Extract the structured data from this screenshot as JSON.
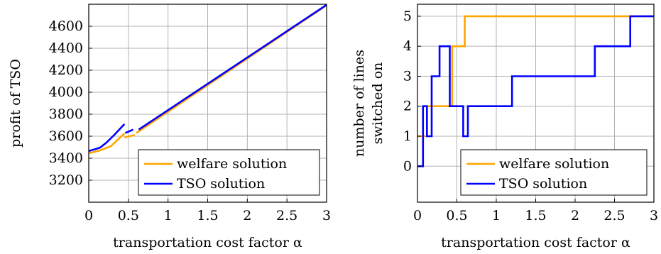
{
  "colors": {
    "welfare": "#ffa500",
    "tso": "#0000ff",
    "grid": "#b3b3b3"
  },
  "chart_data": [
    {
      "type": "line",
      "xlabel": "transportation cost factor α",
      "ylabel": "profit of TSO",
      "xlim": [
        0,
        3
      ],
      "ylim": [
        3000,
        4800
      ],
      "xticks": [
        {
          "v": 0,
          "label": "0"
        },
        {
          "v": 0.5,
          "label": "0.5"
        },
        {
          "v": 1,
          "label": "1"
        },
        {
          "v": 1.5,
          "label": "1.5"
        },
        {
          "v": 2,
          "label": "2"
        },
        {
          "v": 2.5,
          "label": "2.5"
        },
        {
          "v": 3,
          "label": "3"
        }
      ],
      "yticks": [
        {
          "v": 3200,
          "label": "3200"
        },
        {
          "v": 3400,
          "label": "3400"
        },
        {
          "v": 3600,
          "label": "3600"
        },
        {
          "v": 3800,
          "label": "3800"
        },
        {
          "v": 4000,
          "label": "4000"
        },
        {
          "v": 4200,
          "label": "4200"
        },
        {
          "v": 4400,
          "label": "4400"
        },
        {
          "v": 4600,
          "label": "4600"
        }
      ],
      "grid": true,
      "legend": "bottom-right",
      "series": [
        {
          "name": "welfare solution",
          "color_key": "welfare",
          "segments": [
            [
              [
                0,
                3445
              ],
              [
                0.14,
                3470
              ],
              [
                0.28,
                3510
              ],
              [
                0.45,
                3625
              ]
            ],
            [
              [
                0.45,
                3590
              ],
              [
                0.58,
                3610
              ]
            ],
            [
              [
                0.6,
                3630
              ],
              [
                3,
                4790
              ]
            ]
          ]
        },
        {
          "name": "TSO solution",
          "color_key": "tso",
          "segments": [
            [
              [
                0,
                3465
              ],
              [
                0.14,
                3495
              ],
              [
                0.22,
                3540
              ],
              [
                0.32,
                3610
              ],
              [
                0.45,
                3710
              ]
            ],
            [
              [
                0.46,
                3630
              ],
              [
                0.56,
                3660
              ]
            ],
            [
              [
                0.63,
                3660
              ],
              [
                3,
                4795
              ]
            ]
          ]
        }
      ]
    },
    {
      "type": "line",
      "xlabel": "transportation cost factor α",
      "ylabel": [
        "number of lines",
        "switched on"
      ],
      "xlim": [
        0,
        3
      ],
      "ylim": [
        -1.2,
        5.4
      ],
      "xticks": [
        {
          "v": 0,
          "label": "0"
        },
        {
          "v": 0.5,
          "label": "0.5"
        },
        {
          "v": 1,
          "label": "1"
        },
        {
          "v": 1.5,
          "label": "1.5"
        },
        {
          "v": 2,
          "label": "2"
        },
        {
          "v": 2.5,
          "label": "2.5"
        },
        {
          "v": 3,
          "label": "3"
        }
      ],
      "yticks": [
        {
          "v": 0,
          "label": "0"
        },
        {
          "v": 1,
          "label": "1"
        },
        {
          "v": 2,
          "label": "2"
        },
        {
          "v": 3,
          "label": "3"
        },
        {
          "v": 4,
          "label": "4"
        },
        {
          "v": 5,
          "label": "5"
        }
      ],
      "grid": true,
      "legend": "bottom-right",
      "series": [
        {
          "name": "welfare solution",
          "color_key": "welfare",
          "segments": [
            [
              [
                0,
                1
              ],
              [
                0.12,
                1
              ],
              [
                0.12,
                2
              ],
              [
                0.44,
                2
              ],
              [
                0.44,
                4
              ],
              [
                0.6,
                4
              ],
              [
                0.6,
                5
              ],
              [
                3,
                5
              ]
            ]
          ]
        },
        {
          "name": "TSO solution",
          "color_key": "tso",
          "segments": [
            [
              [
                0,
                0
              ],
              [
                0.07,
                0
              ],
              [
                0.07,
                2
              ],
              [
                0.12,
                2
              ],
              [
                0.12,
                1
              ],
              [
                0.18,
                1
              ],
              [
                0.18,
                3
              ],
              [
                0.28,
                3
              ],
              [
                0.28,
                4
              ],
              [
                0.41,
                4
              ],
              [
                0.41,
                2
              ],
              [
                0.58,
                2
              ],
              [
                0.58,
                1
              ],
              [
                0.64,
                1
              ],
              [
                0.64,
                2
              ],
              [
                1.2,
                2
              ],
              [
                1.2,
                3
              ],
              [
                2.25,
                3
              ],
              [
                2.25,
                4
              ],
              [
                2.7,
                4
              ],
              [
                2.7,
                5
              ],
              [
                3,
                5
              ]
            ]
          ]
        }
      ]
    }
  ]
}
